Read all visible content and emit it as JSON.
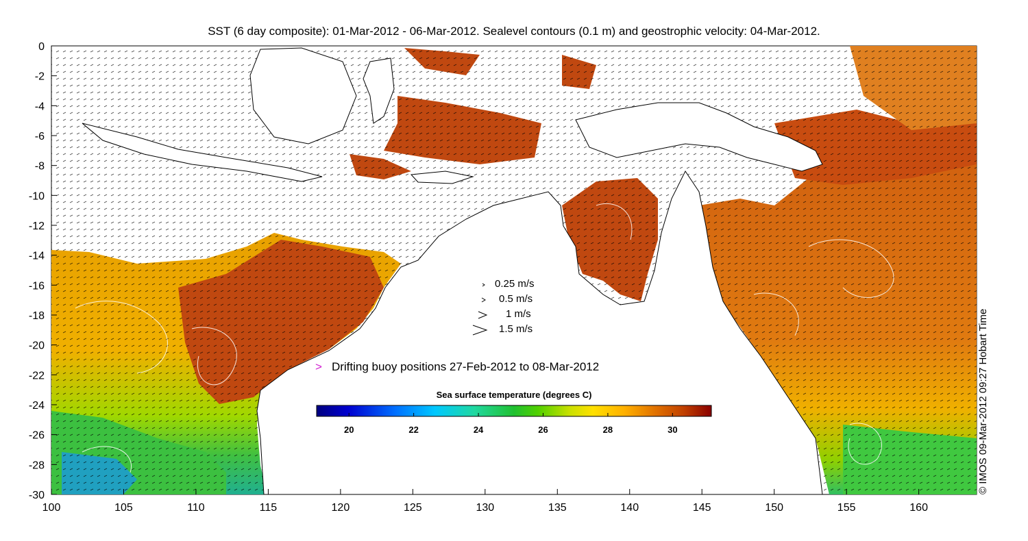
{
  "title": "SST (6 day composite): 01-Mar-2012 - 06-Mar-2012. Sealevel contours (0.1 m) and geostrophic velocity: 04-Mar-2012.",
  "credit": "© IMOS 09-Mar-2012 09:27 Hobart Time",
  "axes": {
    "x_ticks": [
      "100",
      "105",
      "110",
      "115",
      "120",
      "125",
      "130",
      "135",
      "140",
      "145",
      "150",
      "155",
      "160"
    ],
    "y_ticks": [
      "0",
      "-2",
      "-4",
      "-6",
      "-8",
      "-10",
      "-12",
      "-14",
      "-16",
      "-18",
      "-20",
      "-22",
      "-24",
      "-26",
      "-28",
      "-30"
    ],
    "lon_range": [
      100,
      164
    ],
    "lat_range": [
      -30,
      0
    ]
  },
  "velocity_legend": [
    {
      "label": "0.25 m/s",
      "glyph": "›"
    },
    {
      "label": "0.5 m/s",
      "glyph": "›"
    },
    {
      "label": "1 m/s",
      "glyph": ">"
    },
    {
      "label": "1.5 m/s",
      "glyph": ">"
    }
  ],
  "buoy_legend": {
    "marker": ">",
    "label": "Drifting buoy positions 27-Feb-2012 to 08-Mar-2012",
    "color": "#d020d0"
  },
  "colorbar": {
    "title": "Sea surface temperature (degrees C)",
    "ticks": [
      "20",
      "22",
      "24",
      "26",
      "28",
      "30"
    ],
    "range": [
      19,
      31.2
    ],
    "colors": [
      "#00007f",
      "#0000d0",
      "#0060ff",
      "#00c0ff",
      "#20e0a0",
      "#20c040",
      "#40d000",
      "#c0e000",
      "#ffe000",
      "#ffb000",
      "#e07000",
      "#c04000",
      "#900000"
    ]
  },
  "colors": {
    "land": "#ffffff",
    "coast": "#000000",
    "vectors": "#000000",
    "contours": "#ffffff"
  }
}
